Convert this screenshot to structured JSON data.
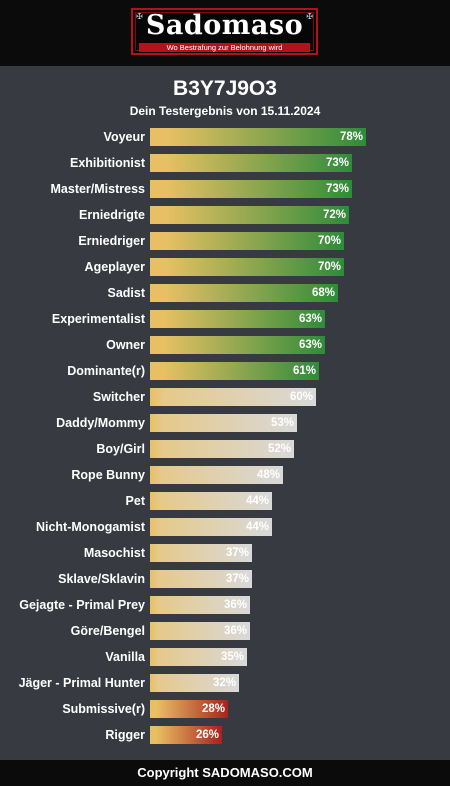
{
  "header": {
    "logo_text": "Sadomaso",
    "logo_tagline": "Wo Bestrafung zur Belohnung wird",
    "corner_glyph": "✠"
  },
  "footer": {
    "copyright": "Copyright SADOMASO.COM"
  },
  "colors": {
    "background": "#373a40",
    "header_bg": "#0b0b0b",
    "logo_red": "#b3121b",
    "bar_start": "#e8c063",
    "green_end": "#2e8b3a",
    "grey_end": "#d9d9d9",
    "red_end": "#a7221f"
  },
  "chart_data": {
    "type": "bar",
    "orientation": "horizontal",
    "title": "B3Y7J9O3",
    "subtitle": "Dein Testergebnis von 15.11.2024",
    "xlim": [
      0,
      100
    ],
    "categories": [
      "Voyeur",
      "Exhibitionist",
      "Master/Mistress",
      "Erniedrigte",
      "Erniedriger",
      "Ageplayer",
      "Sadist",
      "Experimentalist",
      "Owner",
      "Dominante(r)",
      "Switcher",
      "Daddy/Mommy",
      "Boy/Girl",
      "Rope Bunny",
      "Pet",
      "Nicht-Monogamist",
      "Masochist",
      "Sklave/Sklavin",
      "Gejagte - Primal Prey",
      "Göre/Bengel",
      "Vanilla",
      "Jäger - Primal Hunter",
      "Submissive(r)",
      "Rigger"
    ],
    "values": [
      78,
      73,
      73,
      72,
      70,
      70,
      68,
      63,
      63,
      61,
      60,
      53,
      52,
      48,
      44,
      44,
      37,
      37,
      36,
      36,
      35,
      32,
      28,
      26
    ],
    "value_labels": [
      "78%",
      "73%",
      "73%",
      "72%",
      "70%",
      "70%",
      "68%",
      "63%",
      "63%",
      "61%",
      "60%",
      "53%",
      "52%",
      "48%",
      "44%",
      "44%",
      "37%",
      "37%",
      "36%",
      "36%",
      "35%",
      "32%",
      "28%",
      "26%"
    ],
    "color_groups": [
      "green",
      "green",
      "green",
      "green",
      "green",
      "green",
      "green",
      "green",
      "green",
      "green",
      "grey",
      "grey",
      "grey",
      "grey",
      "grey",
      "grey",
      "grey",
      "grey",
      "grey",
      "grey",
      "grey",
      "grey",
      "red",
      "red"
    ]
  }
}
